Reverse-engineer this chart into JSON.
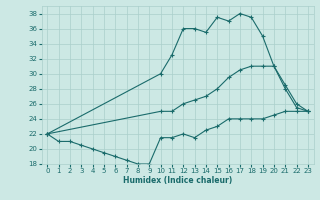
{
  "xlabel": "Humidex (Indice chaleur)",
  "xlim": [
    -0.5,
    23.5
  ],
  "ylim": [
    18,
    39
  ],
  "yticks": [
    18,
    20,
    22,
    24,
    26,
    28,
    30,
    32,
    34,
    36,
    38
  ],
  "xticks": [
    0,
    1,
    2,
    3,
    4,
    5,
    6,
    7,
    8,
    9,
    10,
    11,
    12,
    13,
    14,
    15,
    16,
    17,
    18,
    19,
    20,
    21,
    22,
    23
  ],
  "background_color": "#cce8e4",
  "grid_color": "#aacfcb",
  "line_color": "#1a6b6b",
  "line1_x": [
    0,
    1,
    2,
    3,
    4,
    5,
    6,
    7,
    8,
    9,
    10,
    11,
    12,
    13,
    14,
    15,
    16,
    17,
    18,
    19,
    20,
    21,
    22,
    23
  ],
  "line1_y": [
    22,
    21,
    21,
    20.5,
    20,
    19.5,
    19,
    18.5,
    18,
    18,
    21.5,
    21.5,
    22,
    21.5,
    22.5,
    23,
    24,
    24,
    24,
    24,
    24.5,
    25,
    25,
    25
  ],
  "line2_x": [
    0,
    10,
    11,
    12,
    13,
    14,
    15,
    16,
    17,
    18,
    19,
    20,
    21,
    22,
    23
  ],
  "line2_y": [
    22,
    30,
    32.5,
    36,
    36,
    35.5,
    37.5,
    37,
    38,
    37.5,
    35,
    31,
    28.5,
    26,
    25
  ],
  "line3_x": [
    0,
    10,
    11,
    12,
    13,
    14,
    15,
    16,
    17,
    18,
    19,
    20,
    21,
    22,
    23
  ],
  "line3_y": [
    22,
    25,
    25,
    26,
    26.5,
    27,
    28,
    29.5,
    30.5,
    31,
    31,
    31,
    28,
    25.5,
    25
  ]
}
